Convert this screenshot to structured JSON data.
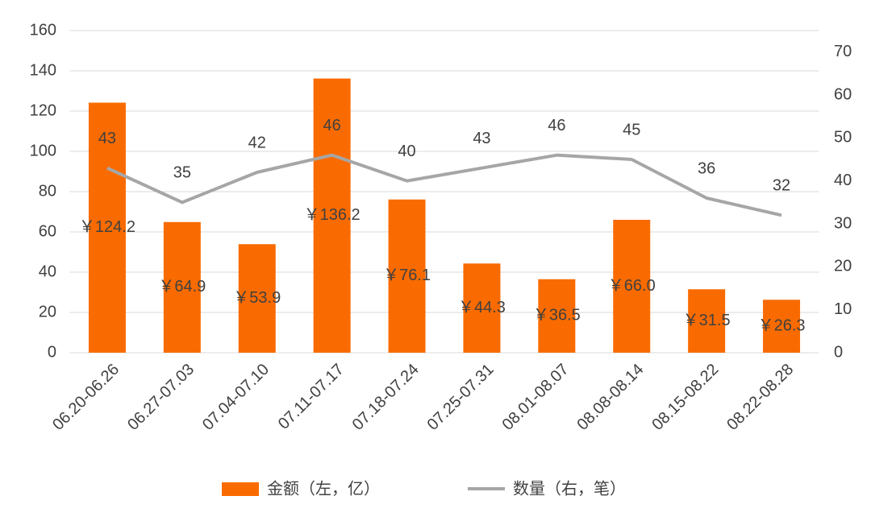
{
  "chart_data": {
    "type": "bar-line",
    "categories": [
      "06.20-06.26",
      "06.27-07.03",
      "07.04-07.10",
      "07.11-07.17",
      "07.18-07.24",
      "07.25-07.31",
      "08.01-08.07",
      "08.08-08.14",
      "08.15-08.22",
      "08.22-08.28"
    ],
    "series": [
      {
        "name": "金额（左，亿）",
        "type": "bar",
        "color": "#f96b00",
        "values": [
          124.2,
          64.9,
          53.9,
          136.2,
          76.1,
          44.3,
          36.5,
          66.0,
          31.5,
          26.3
        ],
        "value_labels": [
          "￥124.2",
          "￥64.9",
          "￥53.9",
          "￥136.2",
          "￥76.1",
          "￥44.3",
          "￥36.5",
          "￥66.0",
          "￥31.5",
          "￥26.3"
        ]
      },
      {
        "name": "数量（右，笔）",
        "type": "line",
        "axis": "y2",
        "color": "#a6a6a6",
        "values": [
          43,
          35,
          42,
          46,
          40,
          43,
          46,
          45,
          36,
          32
        ]
      }
    ],
    "ylim": [
      0,
      160
    ],
    "yticks": [
      0,
      20,
      40,
      60,
      80,
      100,
      120,
      140,
      160
    ],
    "y2lim": [
      0,
      75
    ],
    "y2ticks": [
      0,
      10,
      20,
      30,
      40,
      50,
      60,
      70
    ],
    "grid": true,
    "legend": "bottom"
  }
}
